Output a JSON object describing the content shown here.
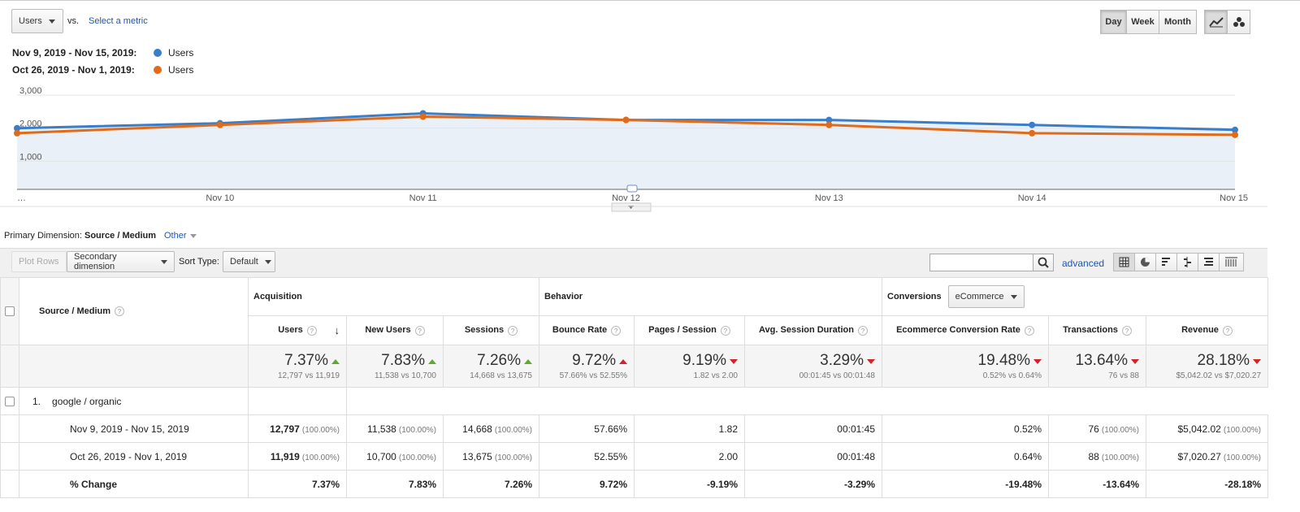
{
  "metric_selector": {
    "selected": "Users",
    "vs": "vs.",
    "select_metric": "Select a metric"
  },
  "granularity": {
    "day": "Day",
    "week": "Week",
    "month": "Month",
    "active": "Day"
  },
  "legend": [
    {
      "range": "Nov 9, 2019 - Nov 15, 2019:",
      "metric": "Users",
      "color": "#3a7dc9"
    },
    {
      "range": "Oct 26, 2019 - Nov 1, 2019:",
      "metric": "Users",
      "color": "#e06c1b"
    }
  ],
  "chart_data": {
    "type": "line",
    "x": [
      "…",
      "Nov 10",
      "Nov 11",
      "Nov 12",
      "Nov 13",
      "Nov 14",
      "Nov 15"
    ],
    "yticks": [
      "3,000",
      "2,000",
      "1,000"
    ],
    "ylim": [
      0,
      3000
    ],
    "grid": true,
    "series": [
      {
        "name": "Nov 9, 2019 - Nov 15, 2019",
        "color": "#3a7dc9",
        "values": [
          1850,
          2000,
          2300,
          2100,
          2100,
          1950,
          1800
        ]
      },
      {
        "name": "Oct 26, 2019 - Nov 1, 2019",
        "color": "#e06c1b",
        "values": [
          1700,
          1950,
          2200,
          2100,
          1950,
          1700,
          1650
        ]
      }
    ]
  },
  "dimension": {
    "label": "Primary Dimension:",
    "active": "Source / Medium",
    "other": "Other"
  },
  "toolbar": {
    "plot_rows": "Plot Rows",
    "secondary": "Secondary dimension",
    "sort_type": "Sort Type:",
    "sort_value": "Default",
    "advanced": "advanced"
  },
  "table": {
    "source_header": "Source / Medium",
    "groups": {
      "acquisition": "Acquisition",
      "behavior": "Behavior",
      "conversions": "Conversions",
      "conversions_select": "eCommerce"
    },
    "columns": [
      "Users",
      "New Users",
      "Sessions",
      "Bounce Rate",
      "Pages / Session",
      "Avg. Session Duration",
      "Ecommerce Conversion Rate",
      "Transactions",
      "Revenue"
    ],
    "summary": [
      {
        "pct": "7.37%",
        "dir": "up-good",
        "sub": "12,797 vs 11,919"
      },
      {
        "pct": "7.83%",
        "dir": "up-good",
        "sub": "11,538 vs 10,700"
      },
      {
        "pct": "7.26%",
        "dir": "up-good",
        "sub": "14,668 vs 13,675"
      },
      {
        "pct": "9.72%",
        "dir": "up-bad",
        "sub": "57.66% vs 52.55%"
      },
      {
        "pct": "9.19%",
        "dir": "down",
        "sub": "1.82 vs 2.00"
      },
      {
        "pct": "3.29%",
        "dir": "down",
        "sub": "00:01:45 vs 00:01:48"
      },
      {
        "pct": "19.48%",
        "dir": "down",
        "sub": "0.52% vs 0.64%"
      },
      {
        "pct": "13.64%",
        "dir": "down",
        "sub": "76 vs 88"
      },
      {
        "pct": "28.18%",
        "dir": "down",
        "sub": "$5,042.02 vs $7,020.27"
      }
    ],
    "row1": {
      "index": "1.",
      "source": "google / organic"
    },
    "rows": [
      {
        "label": "Nov 9, 2019 - Nov 15, 2019",
        "cells": [
          {
            "v": "12,797",
            "p": "(100.00%)",
            "b": true
          },
          {
            "v": "11,538",
            "p": "(100.00%)"
          },
          {
            "v": "14,668",
            "p": "(100.00%)"
          },
          {
            "v": "57.66%"
          },
          {
            "v": "1.82"
          },
          {
            "v": "00:01:45"
          },
          {
            "v": "0.52%"
          },
          {
            "v": "76",
            "p": "(100.00%)"
          },
          {
            "v": "$5,042.02",
            "p": "(100.00%)"
          }
        ]
      },
      {
        "label": "Oct 26, 2019 - Nov 1, 2019",
        "cells": [
          {
            "v": "11,919",
            "p": "(100.00%)",
            "b": true
          },
          {
            "v": "10,700",
            "p": "(100.00%)"
          },
          {
            "v": "13,675",
            "p": "(100.00%)"
          },
          {
            "v": "52.55%"
          },
          {
            "v": "2.00"
          },
          {
            "v": "00:01:48"
          },
          {
            "v": "0.64%"
          },
          {
            "v": "88",
            "p": "(100.00%)"
          },
          {
            "v": "$7,020.27",
            "p": "(100.00%)"
          }
        ]
      },
      {
        "label": "% Change",
        "bold": true,
        "cells": [
          {
            "v": "7.37%"
          },
          {
            "v": "7.83%"
          },
          {
            "v": "7.26%"
          },
          {
            "v": "9.72%"
          },
          {
            "v": "-9.19%"
          },
          {
            "v": "-3.29%"
          },
          {
            "v": "-19.48%"
          },
          {
            "v": "-13.64%"
          },
          {
            "v": "-28.18%"
          }
        ]
      }
    ]
  }
}
